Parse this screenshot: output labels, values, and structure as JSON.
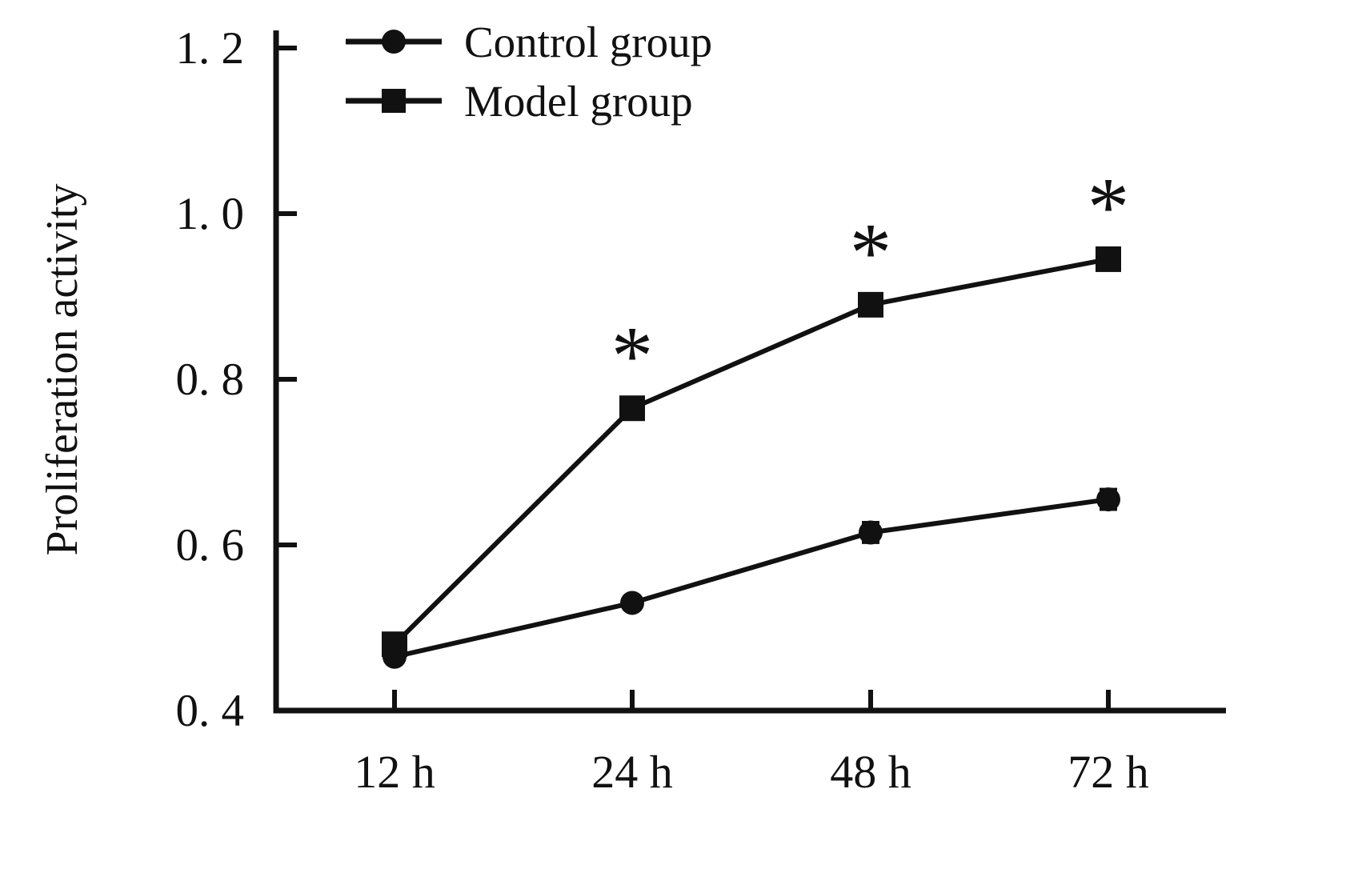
{
  "chart_data": {
    "type": "line",
    "title": "",
    "xlabel": "",
    "ylabel": "Proliferation activity",
    "categories": [
      "12 h",
      "24 h",
      "48 h",
      "72 h"
    ],
    "ylim": [
      0.4,
      1.2
    ],
    "yticks": [
      0.4,
      0.6,
      0.8,
      1.0,
      1.2
    ],
    "ytick_labels": [
      "0. 4",
      "0. 6",
      "0. 8",
      "1. 0",
      "1. 2"
    ],
    "grid": false,
    "legend_position": "top-left",
    "line_color": "#111111",
    "series": [
      {
        "name": "Control group",
        "marker": "circle",
        "values": [
          0.465,
          0.53,
          0.615,
          0.655
        ],
        "errors": [
          0.008,
          0.008,
          0.012,
          0.012
        ],
        "annotations": [
          "",
          "",
          "",
          ""
        ]
      },
      {
        "name": "Model group",
        "marker": "square",
        "values": [
          0.48,
          0.765,
          0.89,
          0.945
        ],
        "errors": [
          0.012,
          0.006,
          0.012,
          0.01
        ],
        "annotations": [
          "",
          "*",
          "*",
          "*"
        ]
      }
    ]
  }
}
